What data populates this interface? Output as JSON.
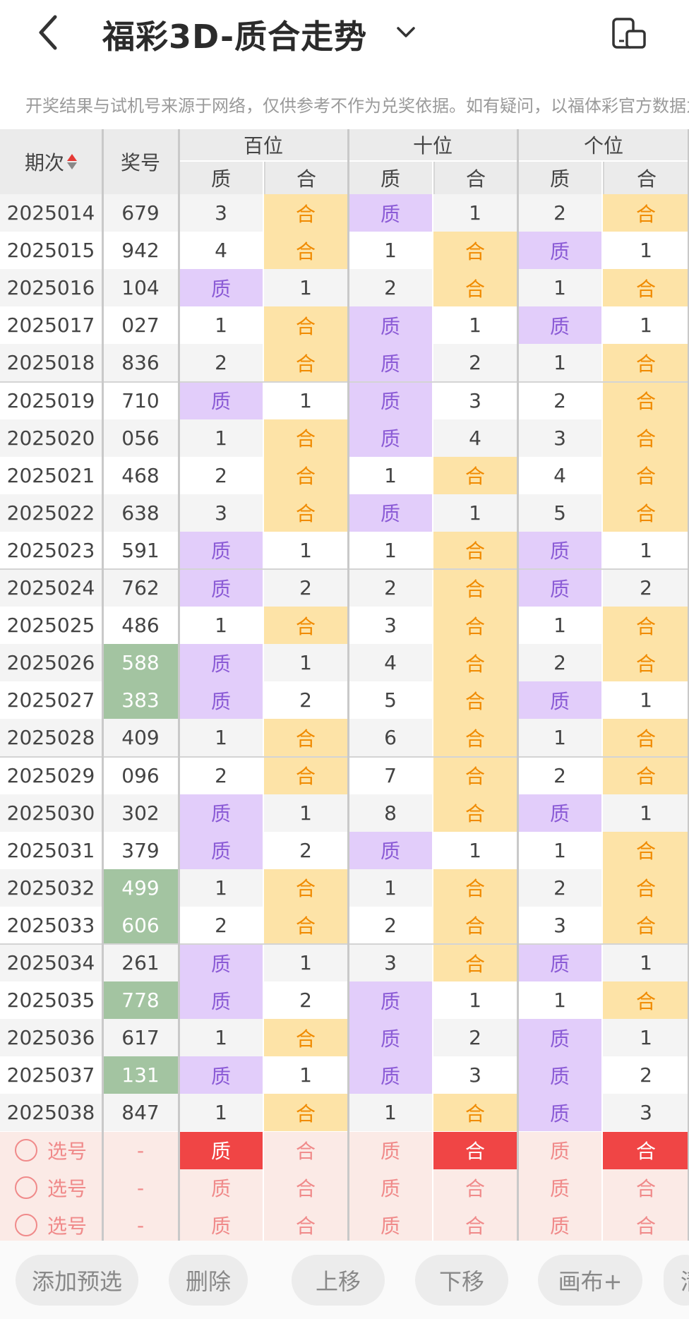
{
  "header": {
    "title": "福彩3D-质合走势",
    "notice": "开奖结果与试机号来源于网络，仅供参考不作为兑奖依据。如有疑问，以福体彩官方数据为"
  },
  "table": {
    "col_period": "期次",
    "col_number": "奖号",
    "groups": [
      "百位",
      "十位",
      "个位"
    ],
    "sub": [
      "质",
      "合"
    ],
    "rows": [
      {
        "p": "2025014",
        "n": "679",
        "c": [
          "3",
          "合",
          "质",
          "1",
          "2",
          "合"
        ],
        "hl": false
      },
      {
        "p": "2025015",
        "n": "942",
        "c": [
          "4",
          "合",
          "1",
          "合",
          "质",
          "1"
        ],
        "hl": false
      },
      {
        "p": "2025016",
        "n": "104",
        "c": [
          "质",
          "1",
          "2",
          "合",
          "1",
          "合"
        ],
        "hl": false
      },
      {
        "p": "2025017",
        "n": "027",
        "c": [
          "1",
          "合",
          "质",
          "1",
          "质",
          "1"
        ],
        "hl": false
      },
      {
        "p": "2025018",
        "n": "836",
        "c": [
          "2",
          "合",
          "质",
          "2",
          "1",
          "合"
        ],
        "hl": false
      },
      {
        "p": "2025019",
        "n": "710",
        "c": [
          "质",
          "1",
          "质",
          "3",
          "2",
          "合"
        ],
        "hl": false
      },
      {
        "p": "2025020",
        "n": "056",
        "c": [
          "1",
          "合",
          "质",
          "4",
          "3",
          "合"
        ],
        "hl": false
      },
      {
        "p": "2025021",
        "n": "468",
        "c": [
          "2",
          "合",
          "1",
          "合",
          "4",
          "合"
        ],
        "hl": false
      },
      {
        "p": "2025022",
        "n": "638",
        "c": [
          "3",
          "合",
          "质",
          "1",
          "5",
          "合"
        ],
        "hl": false
      },
      {
        "p": "2025023",
        "n": "591",
        "c": [
          "质",
          "1",
          "1",
          "合",
          "质",
          "1"
        ],
        "hl": false
      },
      {
        "p": "2025024",
        "n": "762",
        "c": [
          "质",
          "2",
          "2",
          "合",
          "质",
          "2"
        ],
        "hl": false
      },
      {
        "p": "2025025",
        "n": "486",
        "c": [
          "1",
          "合",
          "3",
          "合",
          "1",
          "合"
        ],
        "hl": false
      },
      {
        "p": "2025026",
        "n": "588",
        "c": [
          "质",
          "1",
          "4",
          "合",
          "2",
          "合"
        ],
        "hl": true
      },
      {
        "p": "2025027",
        "n": "383",
        "c": [
          "质",
          "2",
          "5",
          "合",
          "质",
          "1"
        ],
        "hl": true
      },
      {
        "p": "2025028",
        "n": "409",
        "c": [
          "1",
          "合",
          "6",
          "合",
          "1",
          "合"
        ],
        "hl": false
      },
      {
        "p": "2025029",
        "n": "096",
        "c": [
          "2",
          "合",
          "7",
          "合",
          "2",
          "合"
        ],
        "hl": false
      },
      {
        "p": "2025030",
        "n": "302",
        "c": [
          "质",
          "1",
          "8",
          "合",
          "质",
          "1"
        ],
        "hl": false
      },
      {
        "p": "2025031",
        "n": "379",
        "c": [
          "质",
          "2",
          "质",
          "1",
          "1",
          "合"
        ],
        "hl": false
      },
      {
        "p": "2025032",
        "n": "499",
        "c": [
          "1",
          "合",
          "1",
          "合",
          "2",
          "合"
        ],
        "hl": true
      },
      {
        "p": "2025033",
        "n": "606",
        "c": [
          "2",
          "合",
          "2",
          "合",
          "3",
          "合"
        ],
        "hl": true
      },
      {
        "p": "2025034",
        "n": "261",
        "c": [
          "质",
          "1",
          "3",
          "合",
          "质",
          "1"
        ],
        "hl": false
      },
      {
        "p": "2025035",
        "n": "778",
        "c": [
          "质",
          "2",
          "质",
          "1",
          "1",
          "合"
        ],
        "hl": true
      },
      {
        "p": "2025036",
        "n": "617",
        "c": [
          "1",
          "合",
          "质",
          "2",
          "质",
          "1"
        ],
        "hl": false
      },
      {
        "p": "2025037",
        "n": "131",
        "c": [
          "质",
          "1",
          "质",
          "3",
          "质",
          "2"
        ],
        "hl": true
      },
      {
        "p": "2025038",
        "n": "847",
        "c": [
          "1",
          "合",
          "1",
          "合",
          "质",
          "3"
        ],
        "hl": false
      }
    ],
    "picks": [
      {
        "label": "选号",
        "n": "-",
        "c": [
          "质",
          "合",
          "质",
          "合",
          "质",
          "合"
        ],
        "sel": [
          true,
          false,
          false,
          true,
          false,
          true
        ]
      },
      {
        "label": "选号",
        "n": "-",
        "c": [
          "质",
          "合",
          "质",
          "合",
          "质",
          "合"
        ],
        "sel": [
          false,
          false,
          false,
          false,
          false,
          false
        ]
      },
      {
        "label": "选号",
        "n": "-",
        "c": [
          "质",
          "合",
          "质",
          "合",
          "质",
          "合"
        ],
        "sel": [
          false,
          false,
          false,
          false,
          false,
          false
        ]
      }
    ]
  },
  "toolbar": {
    "buttons": [
      "添加预选",
      "删除",
      "上移",
      "下移",
      "画布+",
      "清"
    ]
  },
  "colors": {
    "prime_bg": "#e2cdfa",
    "prime_text": "#8b5bd6",
    "composite_bg": "#fde3a7",
    "composite_text": "#f08a00",
    "highlight_num": "#a3c4a1",
    "pick_bg": "#fbeae6",
    "pick_selected": "#f04545",
    "pick_text": "#f08a8a",
    "row_alt": "#f4f4f4"
  },
  "icons": {
    "back": "chevron-left-icon",
    "dropdown": "chevron-down-icon",
    "orientation": "phone-rotate-icon",
    "sort": "sort-icon"
  }
}
